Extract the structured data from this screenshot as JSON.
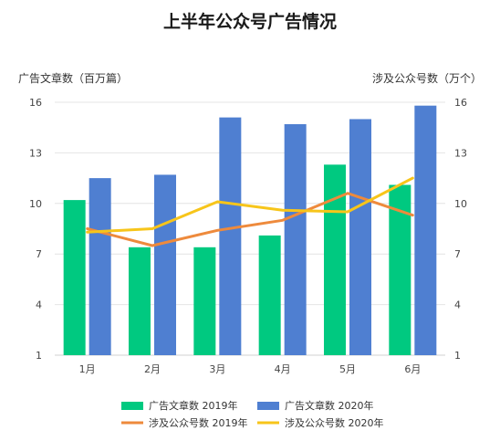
{
  "chart_data": {
    "type": "bar",
    "title": "上半年公众号广告情况",
    "categories": [
      "1月",
      "2月",
      "3月",
      "4月",
      "5月",
      "6月"
    ],
    "y_left": {
      "label": "广告文章数（百万篇）",
      "ticks": [
        1,
        4,
        7,
        10,
        13,
        16
      ],
      "range": [
        1,
        16
      ]
    },
    "y_right": {
      "label": "涉及公众号数（万个）",
      "ticks": [
        1,
        4,
        7,
        10,
        13,
        16
      ],
      "range": [
        1,
        16
      ]
    },
    "bar_series": [
      {
        "name": "广告文章数 2019年",
        "color": "#00c980",
        "values": [
          10.2,
          7.4,
          7.4,
          8.1,
          12.3,
          11.1
        ]
      },
      {
        "name": "广告文章数 2020年",
        "color": "#4f7fd1",
        "values": [
          11.5,
          11.7,
          15.1,
          14.7,
          15.0,
          15.8
        ]
      }
    ],
    "line_series": [
      {
        "name": "涉及公众号数 2019年",
        "color": "#ee8a3c",
        "axis": "right",
        "values": [
          8.5,
          7.5,
          8.4,
          9.0,
          10.6,
          9.3
        ]
      },
      {
        "name": "涉及公众号数 2020年",
        "color": "#f7c51a",
        "axis": "right",
        "values": [
          8.3,
          8.5,
          10.1,
          9.6,
          9.5,
          11.5
        ]
      }
    ],
    "grid": true,
    "legend_position": "bottom"
  }
}
